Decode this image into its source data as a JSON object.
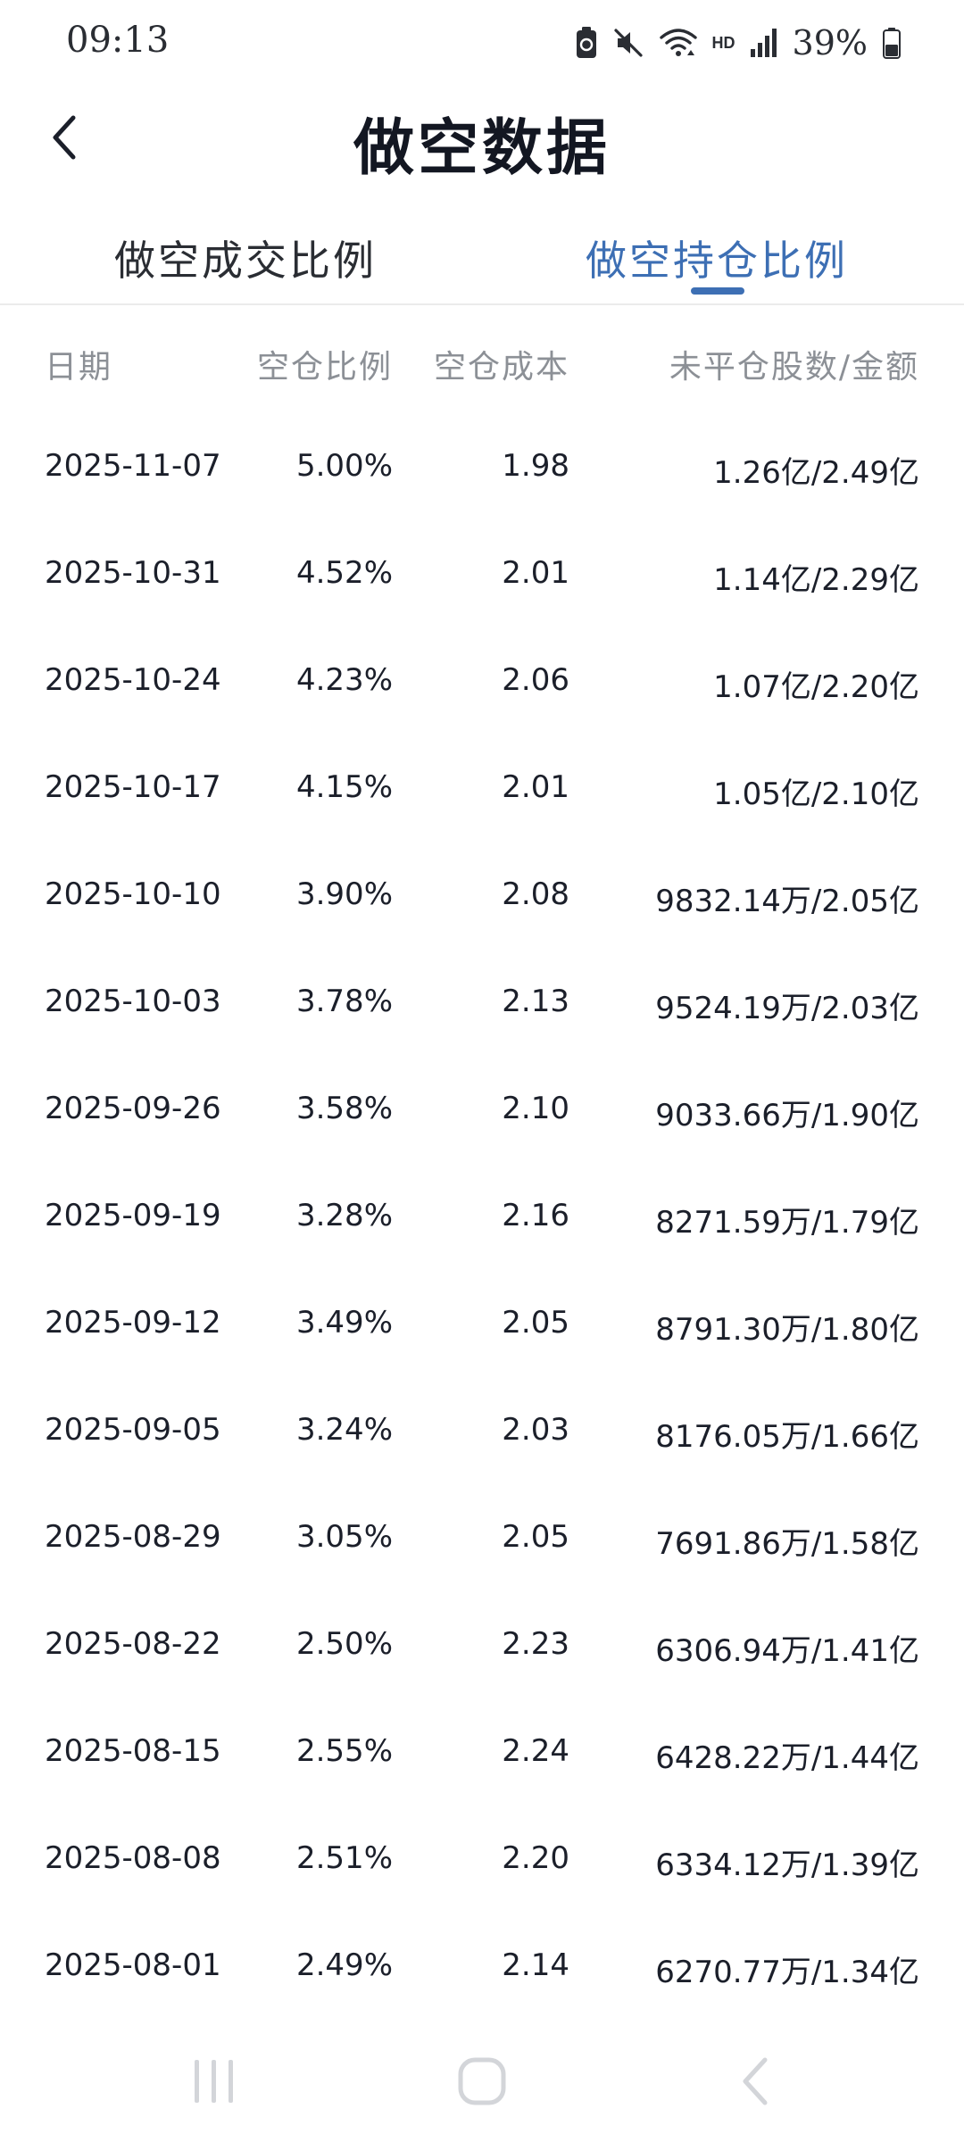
{
  "status_bar": {
    "time": "09:13",
    "hd_label": "HD",
    "battery_percent": "39%"
  },
  "header": {
    "title": "做空数据"
  },
  "tabs": [
    {
      "label": "做空成交比例",
      "active": false
    },
    {
      "label": "做空持仓比例",
      "active": true
    }
  ],
  "table": {
    "columns": [
      "日期",
      "空仓比例",
      "空仓成本",
      "未平仓股数/金额"
    ],
    "rows": [
      {
        "date": "2025-11-07",
        "ratio": "5.00%",
        "cost": "1.98",
        "amount": "1.26亿/2.49亿"
      },
      {
        "date": "2025-10-31",
        "ratio": "4.52%",
        "cost": "2.01",
        "amount": "1.14亿/2.29亿"
      },
      {
        "date": "2025-10-24",
        "ratio": "4.23%",
        "cost": "2.06",
        "amount": "1.07亿/2.20亿"
      },
      {
        "date": "2025-10-17",
        "ratio": "4.15%",
        "cost": "2.01",
        "amount": "1.05亿/2.10亿"
      },
      {
        "date": "2025-10-10",
        "ratio": "3.90%",
        "cost": "2.08",
        "amount": "9832.14万/2.05亿"
      },
      {
        "date": "2025-10-03",
        "ratio": "3.78%",
        "cost": "2.13",
        "amount": "9524.19万/2.03亿"
      },
      {
        "date": "2025-09-26",
        "ratio": "3.58%",
        "cost": "2.10",
        "amount": "9033.66万/1.90亿"
      },
      {
        "date": "2025-09-19",
        "ratio": "3.28%",
        "cost": "2.16",
        "amount": "8271.59万/1.79亿"
      },
      {
        "date": "2025-09-12",
        "ratio": "3.49%",
        "cost": "2.05",
        "amount": "8791.30万/1.80亿"
      },
      {
        "date": "2025-09-05",
        "ratio": "3.24%",
        "cost": "2.03",
        "amount": "8176.05万/1.66亿"
      },
      {
        "date": "2025-08-29",
        "ratio": "3.05%",
        "cost": "2.05",
        "amount": "7691.86万/1.58亿"
      },
      {
        "date": "2025-08-22",
        "ratio": "2.50%",
        "cost": "2.23",
        "amount": "6306.94万/1.41亿"
      },
      {
        "date": "2025-08-15",
        "ratio": "2.55%",
        "cost": "2.24",
        "amount": "6428.22万/1.44亿"
      },
      {
        "date": "2025-08-08",
        "ratio": "2.51%",
        "cost": "2.20",
        "amount": "6334.12万/1.39亿"
      },
      {
        "date": "2025-08-01",
        "ratio": "2.49%",
        "cost": "2.14",
        "amount": "6270.77万/1.34亿"
      }
    ]
  },
  "colors": {
    "accent": "#3d6fb4",
    "text": "#1b1f2a",
    "muted": "#8c9096"
  },
  "icons": {
    "back": "chevron-left-icon",
    "nav_recents": "recents-icon",
    "nav_home": "home-icon",
    "nav_back": "back-icon"
  }
}
